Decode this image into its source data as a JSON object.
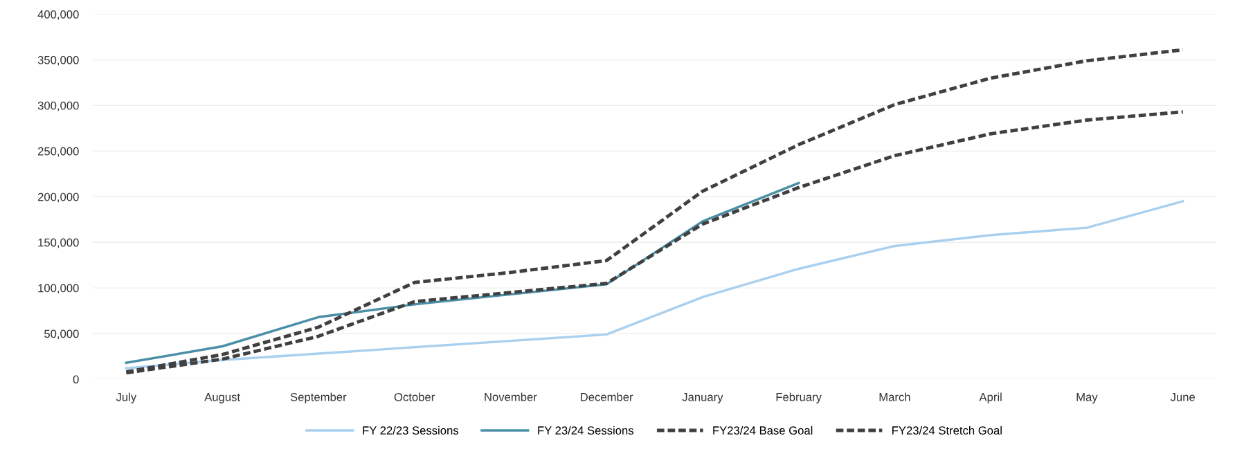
{
  "chart_data": {
    "type": "line",
    "categories": [
      "July",
      "August",
      "September",
      "October",
      "November",
      "December",
      "January",
      "February",
      "March",
      "April",
      "May",
      "June"
    ],
    "series": [
      {
        "name": "FY 22/23 Sessions",
        "color": "#a9d0ef",
        "line_style": "solid",
        "values": [
          12000,
          21000,
          28000,
          35000,
          42000,
          49000,
          90000,
          121000,
          146000,
          158000,
          166000,
          195000
        ]
      },
      {
        "name": "FY 23/24 Sessions",
        "color": "#4a8fa6",
        "line_style": "solid",
        "values": [
          18000,
          36000,
          68000,
          82000,
          93000,
          104000,
          173000,
          215000,
          null,
          null,
          null,
          null
        ]
      },
      {
        "name": "FY23/24 Base Goal",
        "color": "#404040",
        "line_style": "dashed",
        "values": [
          7000,
          22000,
          47000,
          85000,
          95000,
          105000,
          170000,
          210000,
          245000,
          269000,
          284000,
          293000
        ]
      },
      {
        "name": "FY23/24 Stretch Goal",
        "color": "#404040",
        "line_style": "dashed",
        "values": [
          8000,
          27000,
          57000,
          106000,
          117000,
          130000,
          206000,
          257000,
          301000,
          330000,
          349000,
          361000
        ]
      }
    ],
    "ylim": [
      0,
      400000
    ],
    "yticks": [
      {
        "value": 0,
        "label": "0"
      },
      {
        "value": 50000,
        "label": "50,000"
      },
      {
        "value": 100000,
        "label": "100,000"
      },
      {
        "value": 150000,
        "label": "150,000"
      },
      {
        "value": 200000,
        "label": "200,000"
      },
      {
        "value": 250000,
        "label": "250,000"
      },
      {
        "value": 300000,
        "label": "300,000"
      },
      {
        "value": 350000,
        "label": "350,000"
      },
      {
        "value": 400000,
        "label": "400,000"
      }
    ],
    "grid": "y",
    "legend": "bottom",
    "marker": "none"
  }
}
